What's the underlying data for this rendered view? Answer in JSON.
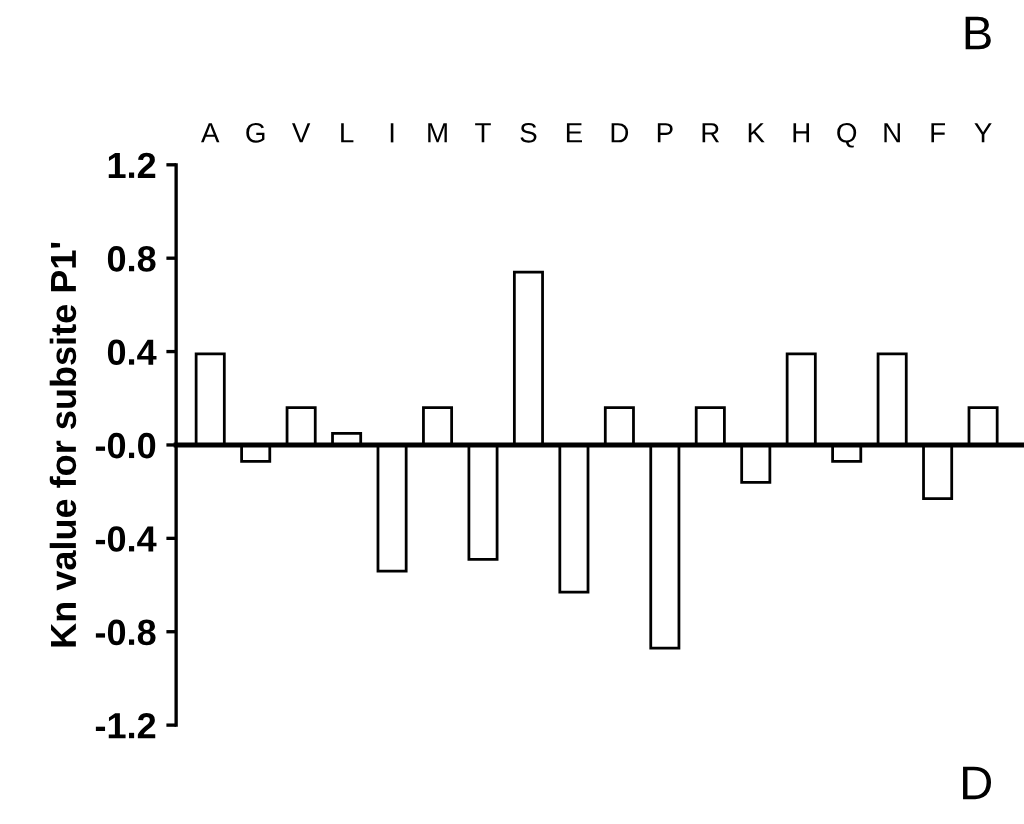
{
  "chart_data": {
    "type": "bar",
    "ylabel": "Kn value for subsite P1'",
    "categories": [
      "A",
      "G",
      "V",
      "L",
      "I",
      "M",
      "T",
      "S",
      "E",
      "D",
      "P",
      "R",
      "K",
      "H",
      "Q",
      "N",
      "F",
      "Y"
    ],
    "series": [
      {
        "color": "#ffffff",
        "values": [
          0.39,
          -0.07,
          0.16,
          0.05,
          -0.54,
          0.16,
          -0.49,
          0.74,
          -0.63,
          0.16,
          -0.87,
          0.16,
          -0.16,
          0.39,
          -0.07,
          0.39,
          -0.23,
          0.16
        ]
      }
    ],
    "ylim": [
      -1.2,
      1.2
    ],
    "yticks": [
      -1.2,
      -0.8,
      -0.4,
      {
        "value": 0,
        "label": "-0.0"
      },
      0.4,
      0.8,
      1.2
    ],
    "annotations": [
      "B",
      "D"
    ]
  }
}
